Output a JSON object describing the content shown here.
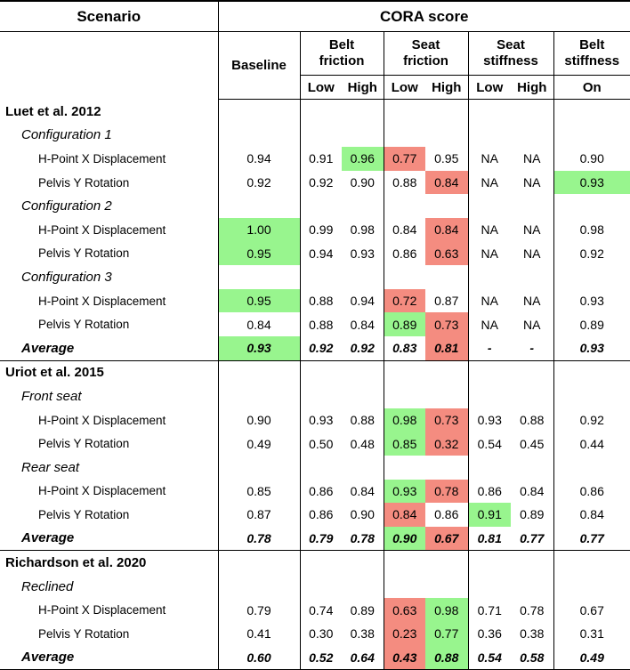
{
  "header": {
    "scenario": "Scenario",
    "cora_score": "CORA score",
    "baseline": "Baseline",
    "belt_friction": [
      "Belt",
      "friction"
    ],
    "seat_friction": [
      "Seat",
      "friction"
    ],
    "seat_stiffness": [
      "Seat",
      "stiffness"
    ],
    "belt_stiffness": [
      "Belt",
      "stiffness"
    ],
    "low": "Low",
    "high": "High",
    "on": "On"
  },
  "colors": {
    "best": "#98f58e",
    "worst": "#f48c80"
  },
  "rows": [
    {
      "type": "study",
      "label": "Luet et al. 2012"
    },
    {
      "type": "cfg",
      "label": "Configuration 1"
    },
    {
      "type": "metric",
      "label": "H-Point X Displacement",
      "values": [
        "0.94",
        "0.91",
        "0.96",
        "0.77",
        "0.95",
        "NA",
        "NA",
        "0.90"
      ],
      "hl": [
        "",
        "",
        "g",
        "r",
        "",
        "",
        "",
        ""
      ]
    },
    {
      "type": "metric",
      "label": "Pelvis Y Rotation",
      "values": [
        "0.92",
        "0.92",
        "0.90",
        "0.88",
        "0.84",
        "NA",
        "NA",
        "0.93"
      ],
      "hl": [
        "",
        "",
        "",
        "",
        "r",
        "",
        "",
        "g"
      ]
    },
    {
      "type": "cfg",
      "label": "Configuration 2"
    },
    {
      "type": "metric",
      "label": "H-Point X Displacement",
      "values": [
        "1.00",
        "0.99",
        "0.98",
        "0.84",
        "0.84",
        "NA",
        "NA",
        "0.98"
      ],
      "hl": [
        "g",
        "",
        "",
        "",
        "r",
        "",
        "",
        ""
      ]
    },
    {
      "type": "metric",
      "label": "Pelvis Y Rotation",
      "values": [
        "0.95",
        "0.94",
        "0.93",
        "0.86",
        "0.63",
        "NA",
        "NA",
        "0.92"
      ],
      "hl": [
        "g",
        "",
        "",
        "",
        "r",
        "",
        "",
        ""
      ]
    },
    {
      "type": "cfg",
      "label": "Configuration 3"
    },
    {
      "type": "metric",
      "label": "H-Point X Displacement",
      "values": [
        "0.95",
        "0.88",
        "0.94",
        "0.72",
        "0.87",
        "NA",
        "NA",
        "0.93"
      ],
      "hl": [
        "g",
        "",
        "",
        "r",
        "",
        "",
        "",
        ""
      ]
    },
    {
      "type": "metric",
      "label": "Pelvis Y Rotation",
      "values": [
        "0.84",
        "0.88",
        "0.84",
        "0.89",
        "0.73",
        "NA",
        "NA",
        "0.89"
      ],
      "hl": [
        "",
        "",
        "",
        "g",
        "r",
        "",
        "",
        ""
      ]
    },
    {
      "type": "avg",
      "label": "Average",
      "values": [
        "0.93",
        "0.92",
        "0.92",
        "0.83",
        "0.81",
        "-",
        "-",
        "0.93"
      ],
      "hl": [
        "g",
        "",
        "",
        "",
        "r",
        "",
        "",
        ""
      ],
      "end": true
    },
    {
      "type": "study",
      "label": "Uriot et al. 2015"
    },
    {
      "type": "cfg",
      "label": "Front seat"
    },
    {
      "type": "metric",
      "label": "H-Point X Displacement",
      "values": [
        "0.90",
        "0.93",
        "0.88",
        "0.98",
        "0.73",
        "0.93",
        "0.88",
        "0.92"
      ],
      "hl": [
        "",
        "",
        "",
        "g",
        "r",
        "",
        "",
        ""
      ]
    },
    {
      "type": "metric",
      "label": "Pelvis Y Rotation",
      "values": [
        "0.49",
        "0.50",
        "0.48",
        "0.85",
        "0.32",
        "0.54",
        "0.45",
        "0.44"
      ],
      "hl": [
        "",
        "",
        "",
        "g",
        "r",
        "",
        "",
        ""
      ]
    },
    {
      "type": "cfg",
      "label": "Rear seat"
    },
    {
      "type": "metric",
      "label": "H-Point X Displacement",
      "values": [
        "0.85",
        "0.86",
        "0.84",
        "0.93",
        "0.78",
        "0.86",
        "0.84",
        "0.86"
      ],
      "hl": [
        "",
        "",
        "",
        "g",
        "r",
        "",
        "",
        ""
      ]
    },
    {
      "type": "metric",
      "label": "Pelvis Y Rotation",
      "values": [
        "0.87",
        "0.86",
        "0.90",
        "0.84",
        "0.86",
        "0.91",
        "0.89",
        "0.84"
      ],
      "hl": [
        "",
        "",
        "",
        "r",
        "",
        "g",
        "",
        ""
      ]
    },
    {
      "type": "avg",
      "label": "Average",
      "values": [
        "0.78",
        "0.79",
        "0.78",
        "0.90",
        "0.67",
        "0.81",
        "0.77",
        "0.77"
      ],
      "hl": [
        "",
        "",
        "",
        "g",
        "r",
        "",
        "",
        ""
      ],
      "end": true
    },
    {
      "type": "study",
      "label": "Richardson et al. 2020"
    },
    {
      "type": "cfg",
      "label": "Reclined"
    },
    {
      "type": "metric",
      "label": "H-Point X Displacement",
      "values": [
        "0.79",
        "0.74",
        "0.89",
        "0.63",
        "0.98",
        "0.71",
        "0.78",
        "0.67"
      ],
      "hl": [
        "",
        "",
        "",
        "r",
        "g",
        "",
        "",
        ""
      ]
    },
    {
      "type": "metric",
      "label": "Pelvis Y Rotation",
      "values": [
        "0.41",
        "0.30",
        "0.38",
        "0.23",
        "0.77",
        "0.36",
        "0.38",
        "0.31"
      ],
      "hl": [
        "",
        "",
        "",
        "r",
        "g",
        "",
        "",
        ""
      ]
    },
    {
      "type": "avg",
      "label": "Average",
      "values": [
        "0.60",
        "0.52",
        "0.64",
        "0.43",
        "0.88",
        "0.54",
        "0.58",
        "0.49"
      ],
      "hl": [
        "",
        "",
        "",
        "r",
        "g",
        "",
        "",
        ""
      ],
      "end": true
    }
  ]
}
